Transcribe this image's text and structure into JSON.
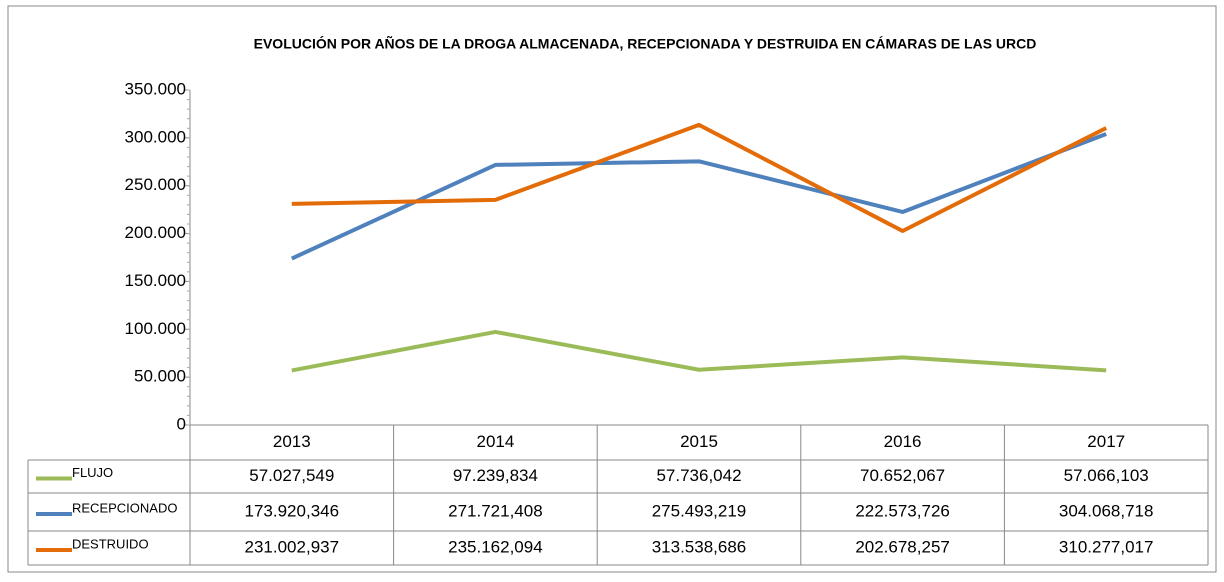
{
  "chart_data": {
    "type": "line",
    "title": "EVOLUCIÓN POR AÑOS DE LA DROGA ALMACENADA, RECEPCIONADA Y DESTRUIDA EN CÁMARAS DE LAS URCD",
    "categories": [
      "2013",
      "2014",
      "2015",
      "2016",
      "2017"
    ],
    "series": [
      {
        "name": "FLUJO",
        "color": "#9bbb59",
        "values": [
          57027.549,
          97239.834,
          57736.042,
          70652.067,
          57066.103
        ],
        "value_labels": [
          "57.027,549",
          "97.239,834",
          "57.736,042",
          "70.652,067",
          "57.066,103"
        ]
      },
      {
        "name": "RECEPCIONADO",
        "color": "#4f81bd",
        "values": [
          173920.346,
          271721.408,
          275493.219,
          222573.726,
          304068.718
        ],
        "value_labels": [
          "173.920,346",
          "271.721,408",
          "275.493,219",
          "222.573,726",
          "304.068,718"
        ]
      },
      {
        "name": "DESTRUIDO",
        "color": "#e36c09",
        "values": [
          231002.937,
          235162.094,
          313538.686,
          202678.257,
          310277.017
        ],
        "value_labels": [
          "231.002,937",
          "235.162,094",
          "313.538,686",
          "202.678,257",
          "310.277,017"
        ]
      }
    ],
    "ylim": [
      0,
      350000
    ],
    "yticks": [
      0,
      {
        "value": 50000,
        "label": "50.000"
      },
      {
        "value": 100000,
        "label": "100.000"
      },
      {
        "value": 150000,
        "label": "150.000"
      },
      {
        "value": 200000,
        "label": "200.000"
      },
      {
        "value": 250000,
        "label": "250.000"
      },
      {
        "value": 300000,
        "label": "300.000"
      },
      {
        "value": 350000,
        "label": "350.000"
      }
    ]
  }
}
